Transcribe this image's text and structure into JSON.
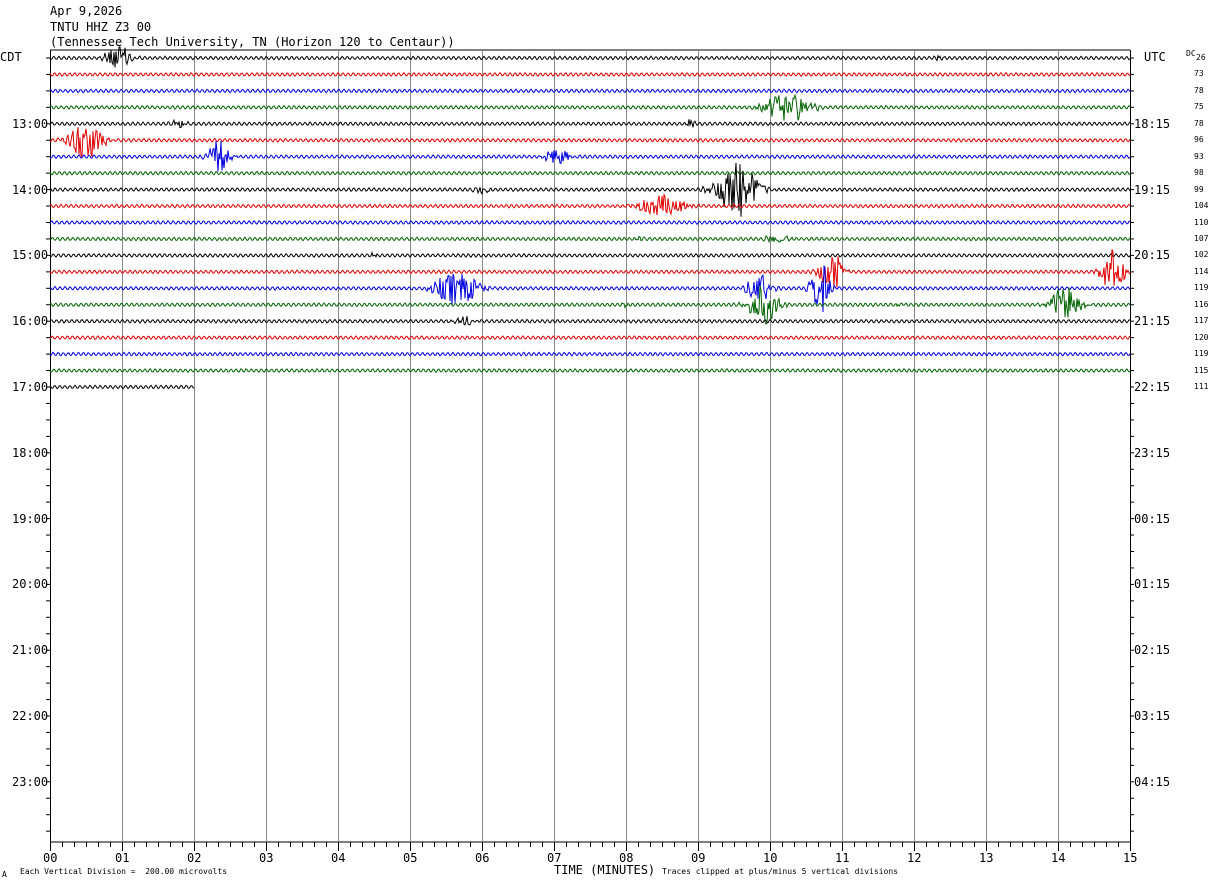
{
  "header": {
    "date": "Apr 9,2026",
    "station": "TNTU HHZ Z3 00",
    "location": "(Tennessee Tech University, TN (Horizon 120 to Centaur))"
  },
  "axis": {
    "left_zone": "CDT",
    "right_zone": "UTC",
    "dc_label": "DC",
    "x_title": "TIME (MINUTES)",
    "scale_note": "Each Vertical Division =  200.00 microvolts",
    "clip_note": "Traces clipped at plus/minus 5 vertical divisions",
    "corner_mark": "A"
  },
  "chart_data": {
    "type": "line",
    "title": "TNTU HHZ Z3 00",
    "xlabel": "TIME (MINUTES)",
    "xlim": [
      0,
      15
    ],
    "x_ticks": [
      "00",
      "01",
      "02",
      "03",
      "04",
      "05",
      "06",
      "07",
      "08",
      "09",
      "10",
      "11",
      "12",
      "13",
      "14",
      "15"
    ],
    "left_time_labels": [
      "13:00",
      "14:00",
      "15:00",
      "16:00",
      "17:00",
      "18:00",
      "19:00",
      "20:00",
      "21:00",
      "22:00",
      "23:00"
    ],
    "right_time_labels": [
      "18:15",
      "19:15",
      "20:15",
      "21:15",
      "22:15",
      "23:15",
      "00:15",
      "01:15",
      "02:15",
      "03:15",
      "04:15"
    ],
    "trace_colors": [
      "#000000",
      "#e00000",
      "#0000e0",
      "#006400"
    ],
    "dc_offsets": [
      "26",
      "73",
      "78",
      "75",
      "78",
      "96",
      "93",
      "98",
      "99",
      "104",
      "110",
      "107",
      "102",
      "114",
      "119",
      "116",
      "117",
      "120",
      "119",
      "115",
      "111"
    ],
    "trace_count": 21,
    "last_trace_end_minute": 2.0,
    "events": [
      {
        "trace": 0,
        "minute": 0.95,
        "amp": 1.3,
        "width": 0.18
      },
      {
        "trace": 0,
        "minute": 12.35,
        "amp": 0.35,
        "width": 0.05
      },
      {
        "trace": 3,
        "minute": 10.25,
        "amp": 1.6,
        "width": 0.3
      },
      {
        "trace": 4,
        "minute": 1.8,
        "amp": 0.45,
        "width": 0.12
      },
      {
        "trace": 4,
        "minute": 8.9,
        "amp": 0.55,
        "width": 0.05
      },
      {
        "trace": 5,
        "minute": 0.5,
        "amp": 2.4,
        "width": 0.22
      },
      {
        "trace": 6,
        "minute": 2.35,
        "amp": 1.8,
        "width": 0.15
      },
      {
        "trace": 6,
        "minute": 7.05,
        "amp": 1.4,
        "width": 0.15
      },
      {
        "trace": 8,
        "minute": 6.0,
        "amp": 0.45,
        "width": 0.1
      },
      {
        "trace": 8,
        "minute": 9.55,
        "amp": 3.2,
        "width": 0.28
      },
      {
        "trace": 9,
        "minute": 8.5,
        "amp": 1.2,
        "width": 0.3
      },
      {
        "trace": 11,
        "minute": 10.1,
        "amp": 0.5,
        "width": 0.15
      },
      {
        "trace": 11,
        "minute": 8.2,
        "amp": 0.3,
        "width": 0.05
      },
      {
        "trace": 12,
        "minute": 4.5,
        "amp": 0.3,
        "width": 0.05
      },
      {
        "trace": 13,
        "minute": 10.85,
        "amp": 2.4,
        "width": 0.15
      },
      {
        "trace": 13,
        "minute": 14.75,
        "amp": 2.4,
        "width": 0.15
      },
      {
        "trace": 14,
        "minute": 5.65,
        "amp": 2.0,
        "width": 0.28
      },
      {
        "trace": 14,
        "minute": 9.85,
        "amp": 1.8,
        "width": 0.15
      },
      {
        "trace": 14,
        "minute": 10.7,
        "amp": 3.0,
        "width": 0.12
      },
      {
        "trace": 15,
        "minute": 9.9,
        "amp": 2.2,
        "width": 0.2
      },
      {
        "trace": 15,
        "minute": 14.1,
        "amp": 2.2,
        "width": 0.2
      },
      {
        "trace": 15,
        "minute": 8.0,
        "amp": 0.35,
        "width": 0.05
      },
      {
        "trace": 15,
        "minute": 11.8,
        "amp": 0.35,
        "width": 0.05
      },
      {
        "trace": 16,
        "minute": 5.75,
        "amp": 0.6,
        "width": 0.15
      }
    ]
  }
}
